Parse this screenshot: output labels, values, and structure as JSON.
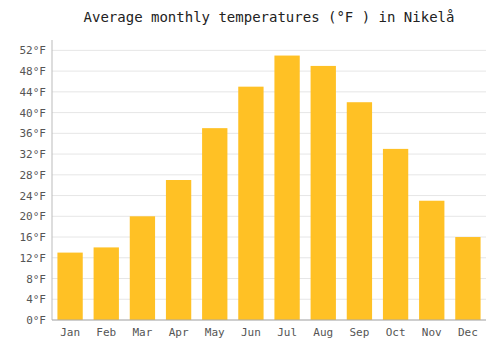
{
  "chart_data": {
    "type": "bar",
    "title": "Average monthly temperatures (°F ) in Nikelå",
    "categories": [
      "Jan",
      "Feb",
      "Mar",
      "Apr",
      "May",
      "Jun",
      "Jul",
      "Aug",
      "Sep",
      "Oct",
      "Nov",
      "Dec"
    ],
    "values": [
      13,
      14,
      20,
      27,
      37,
      45,
      51,
      49,
      42,
      33,
      23,
      16
    ],
    "color": "#FFC125",
    "ylim": [
      0,
      54
    ],
    "yticks": [
      {
        "value": 0,
        "label": "0°F"
      },
      {
        "value": 4,
        "label": "4°F"
      },
      {
        "value": 8,
        "label": "8°F"
      },
      {
        "value": 12,
        "label": "12°F"
      },
      {
        "value": 16,
        "label": "16°F"
      },
      {
        "value": 20,
        "label": "20°F"
      },
      {
        "value": 24,
        "label": "24°F"
      },
      {
        "value": 28,
        "label": "28°F"
      },
      {
        "value": 32,
        "label": "32°F"
      },
      {
        "value": 36,
        "label": "36°F"
      },
      {
        "value": 40,
        "label": "40°F"
      },
      {
        "value": 44,
        "label": "44°F"
      },
      {
        "value": 48,
        "label": "48°F"
      },
      {
        "value": 52,
        "label": "52°F"
      }
    ],
    "grid": true
  }
}
